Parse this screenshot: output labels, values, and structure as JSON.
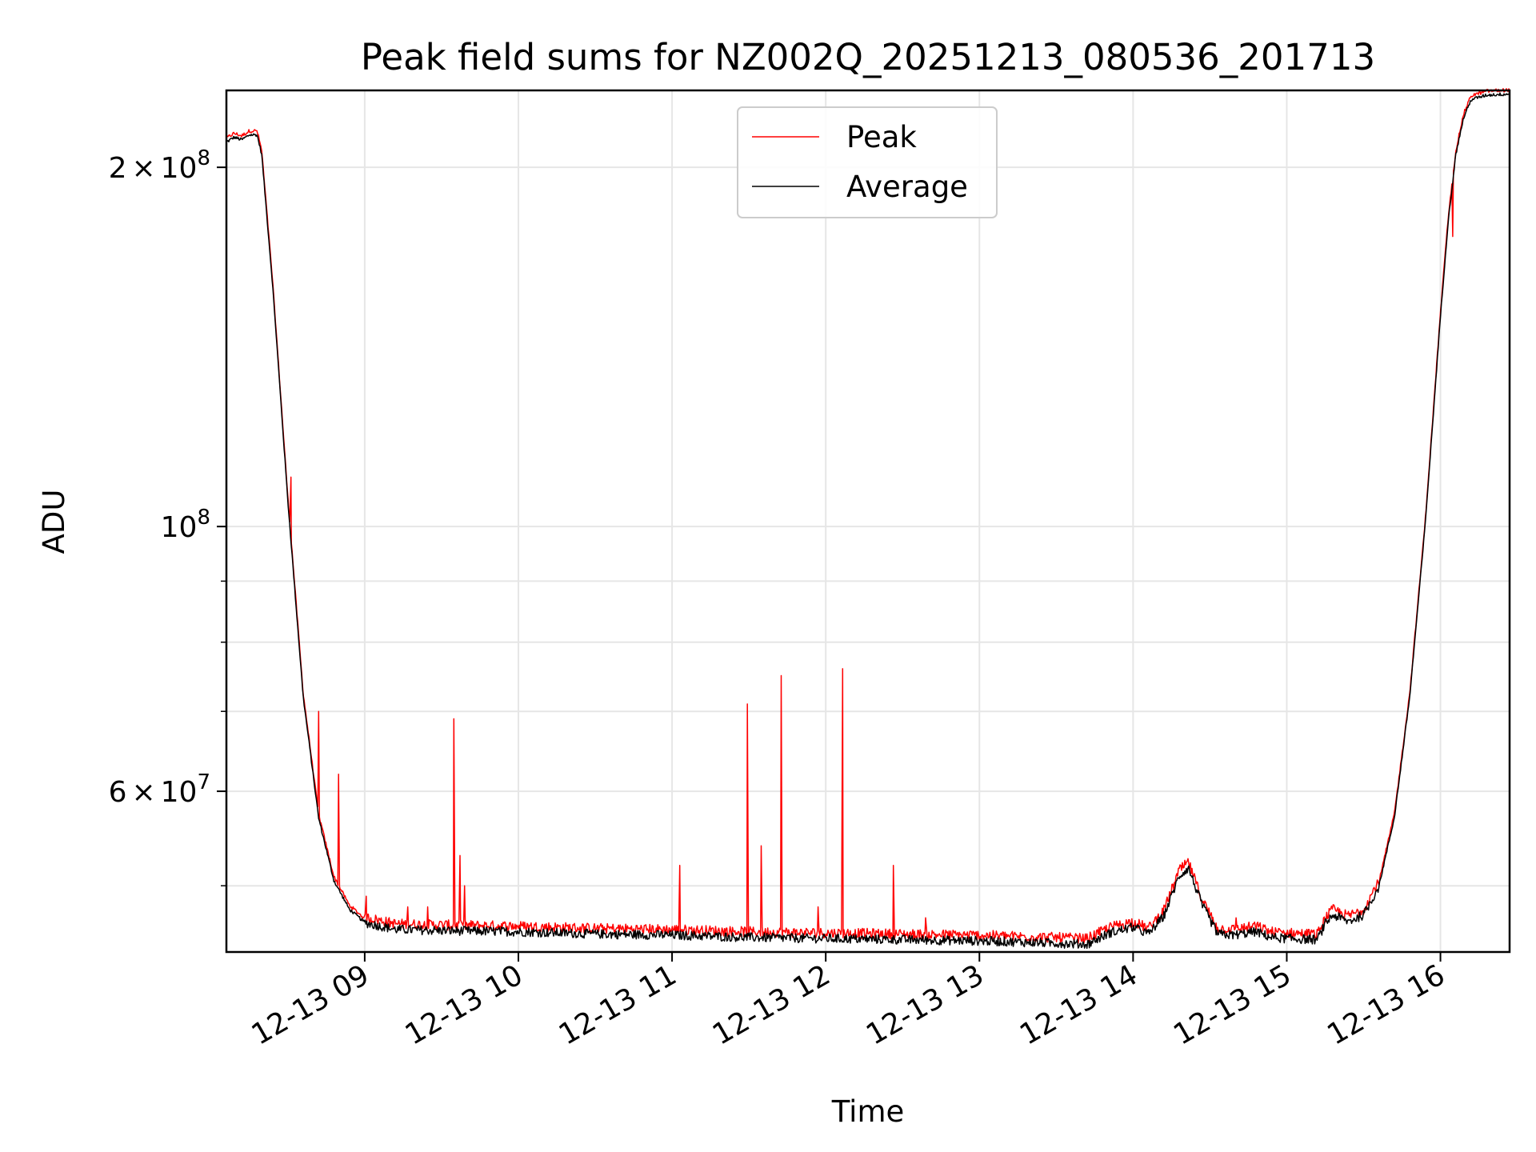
{
  "chart_data": {
    "type": "line",
    "title": "Peak field sums for NZ002Q_20251213_080536_201713",
    "xlabel": "Time",
    "ylabel": "ADU",
    "yscale": "log",
    "ylim": [
      44000000,
      232000000
    ],
    "xlim_hours": [
      8.1,
      16.45
    ],
    "grid": true,
    "x_ticks": [
      {
        "hour": 9,
        "label": "12-13 09"
      },
      {
        "hour": 10,
        "label": "12-13 10"
      },
      {
        "hour": 11,
        "label": "12-13 11"
      },
      {
        "hour": 12,
        "label": "12-13 12"
      },
      {
        "hour": 13,
        "label": "12-13 13"
      },
      {
        "hour": 14,
        "label": "12-13 14"
      },
      {
        "hour": 15,
        "label": "12-13 15"
      },
      {
        "hour": 16,
        "label": "12-13 16"
      }
    ],
    "y_major_ticks": [
      {
        "value": 60000000,
        "mantissa": "6",
        "exp": "7"
      },
      {
        "value": 100000000,
        "mantissa": "",
        "exp": "8"
      },
      {
        "value": 200000000,
        "mantissa": "2",
        "exp": "8"
      }
    ],
    "y_minor_ticks": [
      50000000,
      70000000,
      80000000,
      90000000
    ],
    "legend": {
      "position": "upper center",
      "entries": [
        {
          "label": "Peak",
          "color": "#ff0000"
        },
        {
          "label": "Average",
          "color": "#000000"
        }
      ]
    },
    "series": [
      {
        "name": "Average",
        "color": "#000000",
        "x_hours": [
          8.1,
          8.15,
          8.2,
          8.25,
          8.3,
          8.33,
          8.4,
          8.5,
          8.6,
          8.7,
          8.8,
          8.9,
          9.0,
          9.2,
          9.5,
          10.0,
          10.5,
          11.0,
          11.5,
          12.0,
          12.5,
          13.0,
          13.5,
          13.7,
          13.85,
          14.0,
          14.1,
          14.2,
          14.3,
          14.36,
          14.45,
          14.55,
          14.65,
          14.8,
          14.9,
          15.0,
          15.2,
          15.25,
          15.3,
          15.4,
          15.5,
          15.6,
          15.7,
          15.8,
          15.9,
          16.0,
          16.05,
          16.1,
          16.15,
          16.2,
          16.3,
          16.45
        ],
        "values": [
          210000000,
          212000000,
          211000000,
          213000000,
          213000000,
          205000000,
          160000000,
          105000000,
          72000000,
          57000000,
          50500000,
          47800000,
          46600000,
          46000000,
          45900000,
          45800000,
          45600000,
          45500000,
          45300000,
          45200000,
          45100000,
          45000000,
          44800000,
          44700000,
          45700000,
          46200000,
          45600000,
          47200000,
          51000000,
          51800000,
          48200000,
          45600000,
          45500000,
          45800000,
          45300000,
          45200000,
          45100000,
          46500000,
          47300000,
          46700000,
          47300000,
          50000000,
          57000000,
          72000000,
          100000000,
          150000000,
          180000000,
          205000000,
          220000000,
          228000000,
          230000000,
          230500000
        ]
      },
      {
        "name": "Peak",
        "color": "#ff0000",
        "offset_ratio": 1.006,
        "spikes": [
          {
            "hour": 8.52,
            "value": 110000000
          },
          {
            "hour": 8.7,
            "value": 70000000
          },
          {
            "hour": 8.83,
            "value": 62000000
          },
          {
            "hour": 9.01,
            "value": 49000000
          },
          {
            "hour": 9.28,
            "value": 48000000
          },
          {
            "hour": 9.41,
            "value": 48000000
          },
          {
            "hour": 9.58,
            "value": 69000000
          },
          {
            "hour": 9.62,
            "value": 53000000
          },
          {
            "hour": 9.65,
            "value": 50000000
          },
          {
            "hour": 11.05,
            "value": 52000000
          },
          {
            "hour": 11.49,
            "value": 71000000
          },
          {
            "hour": 11.58,
            "value": 54000000
          },
          {
            "hour": 11.71,
            "value": 75000000
          },
          {
            "hour": 11.95,
            "value": 48000000
          },
          {
            "hour": 12.11,
            "value": 76000000
          },
          {
            "hour": 12.44,
            "value": 52000000
          },
          {
            "hour": 12.65,
            "value": 47000000
          },
          {
            "hour": 14.67,
            "value": 47000000
          },
          {
            "hour": 16.08,
            "value": 175000000
          }
        ]
      }
    ]
  }
}
